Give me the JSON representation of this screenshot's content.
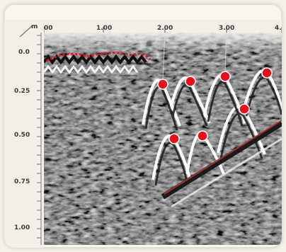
{
  "axis": {
    "unit": "m",
    "x_ticks": [
      "00",
      "1.00",
      "2.00",
      "3.00",
      "4."
    ],
    "y_ticks": [
      "0.0",
      "0.25",
      "0.50",
      "0.75",
      "1.00"
    ]
  },
  "colors": {
    "marker": "#e8101c",
    "background": "#f3f1e9",
    "hyperbola": "#ffffff",
    "dark_band": "#1a1a1a"
  },
  "image": {
    "description_icon": "gpr-radargram-image"
  }
}
